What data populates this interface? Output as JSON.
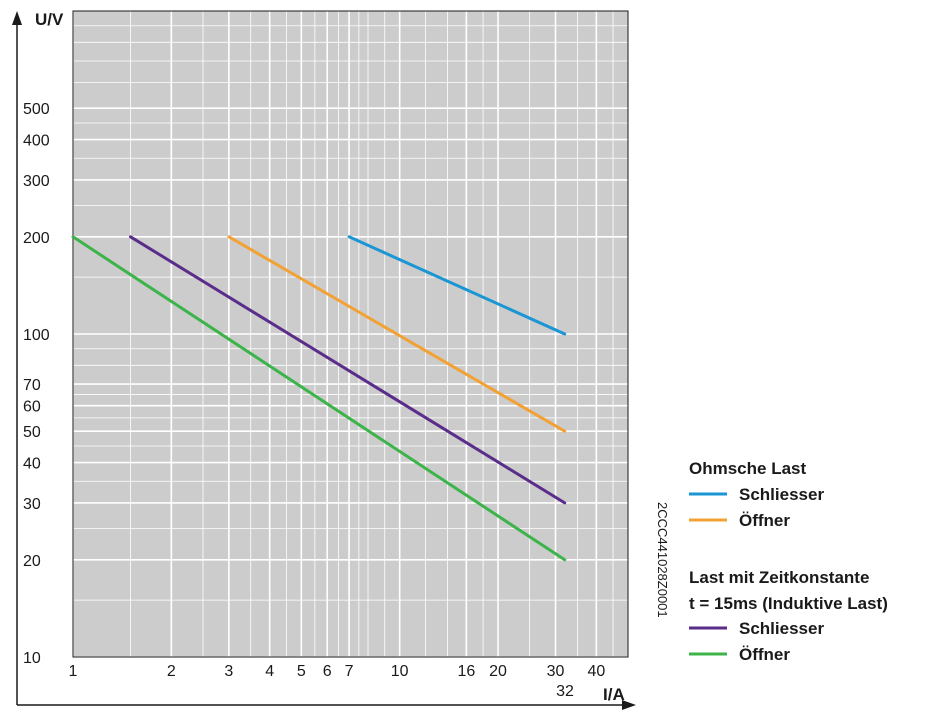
{
  "chart_data": {
    "type": "line",
    "xlabel": "I/A",
    "ylabel": "U/V",
    "xscale": "log",
    "yscale": "log",
    "xlim": [
      1,
      50
    ],
    "ylim": [
      10,
      1000
    ],
    "grid": true,
    "x_tick_labels": [
      "1",
      "2",
      "3",
      "4",
      "5",
      "6",
      "7",
      "10",
      "16",
      "20",
      "30",
      "40"
    ],
    "x_tick_label_extra": "32",
    "y_tick_labels": [
      "10",
      "20",
      "30",
      "40",
      "50",
      "60",
      "70",
      "100",
      "200",
      "300",
      "400",
      "500"
    ],
    "series": [
      {
        "name": "Schliesser",
        "group": "Ohmsche Last",
        "color": "#1a96d4",
        "x": [
          7,
          32
        ],
        "y": [
          200,
          100
        ]
      },
      {
        "name": "Öffner",
        "group": "Ohmsche Last",
        "color": "#f2a134",
        "x": [
          3,
          32
        ],
        "y": [
          200,
          50
        ]
      },
      {
        "name": "Schliesser",
        "group": "Last mit Zeitkonstante",
        "color": "#5b2d8a",
        "x": [
          1.5,
          32
        ],
        "y": [
          200,
          30
        ]
      },
      {
        "name": "Öffner",
        "group": "Last mit Zeitkonstante",
        "color": "#3cb44a",
        "x": [
          1,
          32
        ],
        "y": [
          200,
          20
        ]
      }
    ],
    "legend": {
      "placement": "right",
      "groups": [
        {
          "title": "Ohmsche Last",
          "items": [
            {
              "label": "Schliesser",
              "color": "#1a96d4"
            },
            {
              "label": "Öffner",
              "color": "#f2a134"
            }
          ]
        },
        {
          "title": "Last mit Zeitkonstante",
          "subtitle": "t = 15ms (Induktive Last)",
          "items": [
            {
              "label": "Schliesser",
              "color": "#5b2d8a"
            },
            {
              "label": "Öffner",
              "color": "#3cb44a"
            }
          ]
        }
      ]
    },
    "figure_code": "2CCC441028Z0001",
    "plot_background": "#cccccc",
    "grid_color": "#ffffff"
  }
}
